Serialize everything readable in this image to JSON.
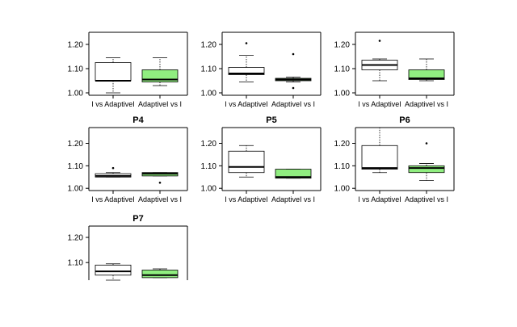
{
  "figure": {
    "box_colors": {
      "first": "#ffffff",
      "second": "#90ee80"
    }
  },
  "chart_data": [
    {
      "type": "boxplot",
      "title": "",
      "categories": [
        "I vs AdaptiveI",
        "AdaptiveI vs I"
      ],
      "yticks": [
        "1.00",
        "1.10",
        "1.20"
      ],
      "ylim": [
        0.99,
        1.25
      ],
      "boxes": [
        {
          "min": 1.0,
          "q1": 1.05,
          "median": 1.05,
          "q3": 1.125,
          "max": 1.145,
          "outliers": []
        },
        {
          "min": 1.03,
          "q1": 1.045,
          "median": 1.055,
          "q3": 1.095,
          "max": 1.145,
          "outliers": []
        }
      ]
    },
    {
      "type": "boxplot",
      "title": "",
      "categories": [
        "I vs AdaptiveI",
        "AdaptiveI vs I"
      ],
      "yticks": [
        "1.00",
        "1.10",
        "1.20"
      ],
      "ylim": [
        0.99,
        1.25
      ],
      "boxes": [
        {
          "min": 1.045,
          "q1": 1.075,
          "median": 1.08,
          "q3": 1.105,
          "max": 1.155,
          "outliers": [
            1.205
          ]
        },
        {
          "min": 1.045,
          "q1": 1.05,
          "median": 1.055,
          "q3": 1.06,
          "max": 1.065,
          "outliers": [
            1.02,
            1.16
          ]
        }
      ]
    },
    {
      "type": "boxplot",
      "title": "",
      "categories": [
        "I vs AdaptiveI",
        "AdaptiveI vs I"
      ],
      "yticks": [
        "1.00",
        "1.10",
        "1.20"
      ],
      "ylim": [
        0.99,
        1.25
      ],
      "boxes": [
        {
          "min": 1.05,
          "q1": 1.095,
          "median": 1.115,
          "q3": 1.135,
          "max": 1.14,
          "outliers": [
            1.215
          ]
        },
        {
          "min": 1.05,
          "q1": 1.055,
          "median": 1.06,
          "q3": 1.095,
          "max": 1.14,
          "outliers": []
        }
      ]
    },
    {
      "type": "boxplot",
      "title": "P4",
      "categories": [
        "I vs AdaptiveI",
        "AdaptiveI vs I"
      ],
      "yticks": [
        "1.00",
        "1.10",
        "1.20"
      ],
      "ylim": [
        0.99,
        1.27
      ],
      "boxes": [
        {
          "min": 1.05,
          "q1": 1.05,
          "median": 1.055,
          "q3": 1.065,
          "max": 1.07,
          "outliers": [
            1.09
          ]
        },
        {
          "min": 1.055,
          "q1": 1.055,
          "median": 1.065,
          "q3": 1.07,
          "max": 1.07,
          "outliers": [
            1.025
          ]
        }
      ]
    },
    {
      "type": "boxplot",
      "title": "P5",
      "categories": [
        "I vs AdaptiveI",
        "AdaptiveI vs I"
      ],
      "yticks": [
        "1.00",
        "1.10",
        "1.20"
      ],
      "ylim": [
        0.99,
        1.27
      ],
      "boxes": [
        {
          "min": 1.05,
          "q1": 1.07,
          "median": 1.095,
          "q3": 1.165,
          "max": 1.19,
          "outliers": []
        },
        {
          "min": 1.045,
          "q1": 1.045,
          "median": 1.05,
          "q3": 1.085,
          "max": 1.085,
          "outliers": []
        }
      ]
    },
    {
      "type": "boxplot",
      "title": "P6",
      "categories": [
        "I vs AdaptiveI",
        "AdaptiveI vs I"
      ],
      "yticks": [
        "1.00",
        "1.10",
        "1.20"
      ],
      "ylim": [
        0.99,
        1.27
      ],
      "boxes": [
        {
          "min": 1.07,
          "q1": 1.085,
          "median": 1.09,
          "q3": 1.19,
          "max": 1.27,
          "outliers": []
        },
        {
          "min": 1.035,
          "q1": 1.07,
          "median": 1.09,
          "q3": 1.1,
          "max": 1.11,
          "outliers": [
            1.2
          ]
        }
      ]
    },
    {
      "type": "boxplot",
      "title": "P7",
      "categories": [],
      "yticks": [
        "1.10",
        "1.20"
      ],
      "ylim": [
        1.03,
        1.245
      ],
      "boxes": [
        {
          "min": 1.03,
          "q1": 1.05,
          "median": 1.065,
          "q3": 1.09,
          "max": 1.095,
          "outliers": []
        },
        {
          "min": 1.04,
          "q1": 1.04,
          "median": 1.05,
          "q3": 1.07,
          "max": 1.075,
          "outliers": []
        }
      ]
    }
  ]
}
